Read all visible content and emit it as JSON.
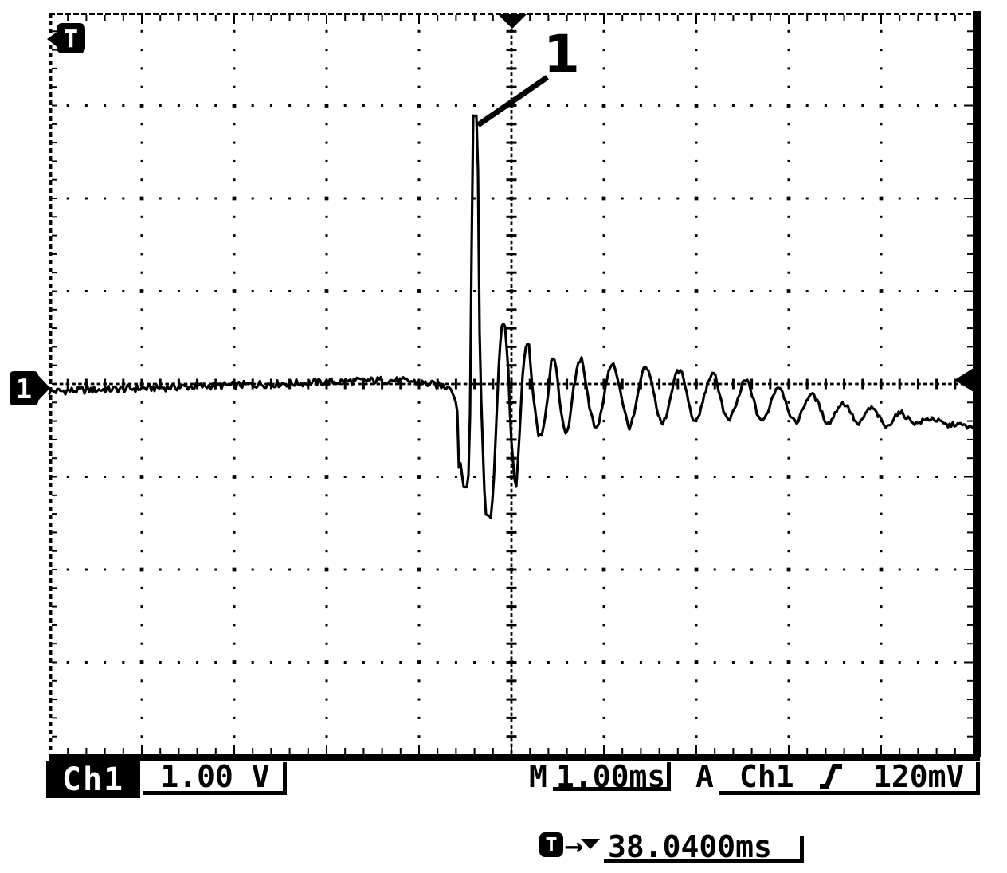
{
  "device": {
    "screen_bg": "#ffffff",
    "ink": "#000000"
  },
  "markers": {
    "trigger_icon_label": "T",
    "channel_label": "1",
    "delay_arrow_glyph": "→"
  },
  "annotation": {
    "label": "1"
  },
  "readouts": {
    "channel": {
      "name": "Ch1",
      "scale": "1.00 V"
    },
    "timebase": {
      "prefix": "M",
      "value": "1.00ms"
    },
    "trigger": {
      "prefix": "A",
      "source": "Ch1",
      "slope_icon": "rising-edge-icon",
      "level": "120mV"
    },
    "delay": {
      "icon_label": "T",
      "value": "38.0400ms"
    }
  },
  "chart_data": {
    "type": "line",
    "title": "Oscilloscope single-shot capture: transient spike with decaying ringing",
    "x_divisions": 10,
    "y_divisions": 8,
    "minor_per_div": 5,
    "grid": "dotted",
    "time_per_div": "1.00ms",
    "volts_per_div": "1.00 V",
    "x_units": "ms",
    "y_units": "V",
    "trigger_position_div": 5,
    "trigger_level": "120mV",
    "trigger_delay": "38.0400ms",
    "baseline_end_div": 4.3,
    "transition_end_div": 5.05,
    "noise_sigma_volts": {
      "baseline": 0.04,
      "transition": 0.01,
      "ringing": 0.026
    },
    "series": [
      {
        "name": "Ch1",
        "points_x_div_y_volts": [
          [
            0.0,
            -0.08
          ],
          [
            0.3,
            -0.07
          ],
          [
            0.6,
            -0.06
          ],
          [
            0.9,
            -0.05
          ],
          [
            1.2,
            -0.04
          ],
          [
            1.5,
            -0.03
          ],
          [
            1.8,
            -0.02
          ],
          [
            2.1,
            -0.01
          ],
          [
            2.4,
            0.0
          ],
          [
            2.7,
            0.01
          ],
          [
            3.0,
            0.02
          ],
          [
            3.3,
            0.03
          ],
          [
            3.6,
            0.04
          ],
          [
            3.9,
            0.03
          ],
          [
            4.1,
            0.0
          ],
          [
            4.25,
            -0.02
          ],
          [
            4.33,
            -0.03
          ],
          [
            4.36,
            -0.09
          ],
          [
            4.4,
            -0.2
          ],
          [
            4.42,
            -0.33
          ],
          [
            4.43,
            -0.9
          ],
          [
            4.46,
            -0.84
          ],
          [
            4.47,
            -1.1
          ],
          [
            4.53,
            -1.12
          ],
          [
            4.55,
            -0.5
          ],
          [
            4.57,
            1.56
          ],
          [
            4.58,
            2.89
          ],
          [
            4.63,
            2.89
          ],
          [
            4.64,
            2.14
          ],
          [
            4.65,
            1.05
          ],
          [
            4.66,
            0.1
          ],
          [
            4.68,
            -0.33
          ],
          [
            4.7,
            -1.01
          ],
          [
            4.72,
            -1.4
          ],
          [
            4.78,
            -1.44
          ],
          [
            4.81,
            -1.01
          ],
          [
            4.84,
            -0.33
          ],
          [
            4.87,
            0.36
          ],
          [
            4.9,
            0.66
          ],
          [
            4.93,
            0.62
          ],
          [
            4.97,
            0.1
          ],
          [
            4.99,
            -0.5
          ],
          [
            5.03,
            -1.01
          ],
          [
            5.05,
            -1.12
          ],
          [
            5.09,
            -0.5
          ],
          [
            5.12,
            0.1
          ],
          [
            5.16,
            0.45
          ],
          [
            5.19,
            0.4
          ],
          [
            5.22,
            0.02
          ],
          [
            5.26,
            -0.33
          ],
          [
            5.29,
            -0.54
          ],
          [
            5.33,
            -0.58
          ],
          [
            5.36,
            -0.37
          ],
          [
            5.4,
            -0.07
          ],
          [
            5.43,
            0.23
          ],
          [
            5.47,
            0.27
          ],
          [
            5.5,
            0.02
          ],
          [
            5.54,
            -0.33
          ],
          [
            5.59,
            -0.54
          ],
          [
            5.63,
            -0.41
          ],
          [
            5.67,
            -0.07
          ],
          [
            5.72,
            0.23
          ],
          [
            5.76,
            0.27
          ],
          [
            5.8,
            0.06
          ],
          [
            5.85,
            -0.28
          ],
          [
            5.91,
            -0.5
          ],
          [
            5.96,
            -0.37
          ],
          [
            6.01,
            -0.07
          ],
          [
            6.06,
            0.17
          ],
          [
            6.11,
            0.21
          ],
          [
            6.16,
            0.02
          ],
          [
            6.22,
            -0.28
          ],
          [
            6.27,
            -0.48
          ],
          [
            6.32,
            -0.37
          ],
          [
            6.37,
            -0.11
          ],
          [
            6.42,
            0.15
          ],
          [
            6.47,
            0.17
          ],
          [
            6.53,
            -0.03
          ],
          [
            6.58,
            -0.31
          ],
          [
            6.63,
            -0.45
          ],
          [
            6.68,
            -0.33
          ],
          [
            6.73,
            -0.09
          ],
          [
            6.78,
            0.12
          ],
          [
            6.84,
            0.14
          ],
          [
            6.89,
            -0.07
          ],
          [
            6.94,
            -0.31
          ],
          [
            6.99,
            -0.43
          ],
          [
            7.04,
            -0.31
          ],
          [
            7.09,
            -0.11
          ],
          [
            7.15,
            0.09
          ],
          [
            7.2,
            0.1
          ],
          [
            7.25,
            -0.09
          ],
          [
            7.3,
            -0.31
          ],
          [
            7.35,
            -0.41
          ],
          [
            7.4,
            -0.31
          ],
          [
            7.46,
            -0.14
          ],
          [
            7.51,
            0.03
          ],
          [
            7.56,
            0.03
          ],
          [
            7.61,
            -0.14
          ],
          [
            7.66,
            -0.33
          ],
          [
            7.72,
            -0.41
          ],
          [
            7.77,
            -0.31
          ],
          [
            7.82,
            -0.15
          ],
          [
            7.87,
            -0.03
          ],
          [
            7.92,
            -0.04
          ],
          [
            7.97,
            -0.2
          ],
          [
            8.03,
            -0.37
          ],
          [
            8.08,
            -0.43
          ],
          [
            8.13,
            -0.33
          ],
          [
            8.18,
            -0.2
          ],
          [
            8.23,
            -0.11
          ],
          [
            8.28,
            -0.13
          ],
          [
            8.34,
            -0.26
          ],
          [
            8.39,
            -0.39
          ],
          [
            8.44,
            -0.43
          ],
          [
            8.49,
            -0.34
          ],
          [
            8.54,
            -0.24
          ],
          [
            8.59,
            -0.2
          ],
          [
            8.65,
            -0.26
          ],
          [
            8.7,
            -0.37
          ],
          [
            8.75,
            -0.45
          ],
          [
            8.8,
            -0.39
          ],
          [
            8.85,
            -0.28
          ],
          [
            8.91,
            -0.26
          ],
          [
            8.96,
            -0.33
          ],
          [
            9.01,
            -0.41
          ],
          [
            9.06,
            -0.48
          ],
          [
            9.11,
            -0.41
          ],
          [
            9.16,
            -0.33
          ],
          [
            9.22,
            -0.31
          ],
          [
            9.29,
            -0.37
          ],
          [
            9.38,
            -0.43
          ],
          [
            9.47,
            -0.39
          ],
          [
            9.55,
            -0.37
          ],
          [
            9.64,
            -0.41
          ],
          [
            9.72,
            -0.45
          ],
          [
            9.81,
            -0.43
          ],
          [
            9.9,
            -0.45
          ],
          [
            10.0,
            -0.48
          ]
        ]
      }
    ]
  }
}
